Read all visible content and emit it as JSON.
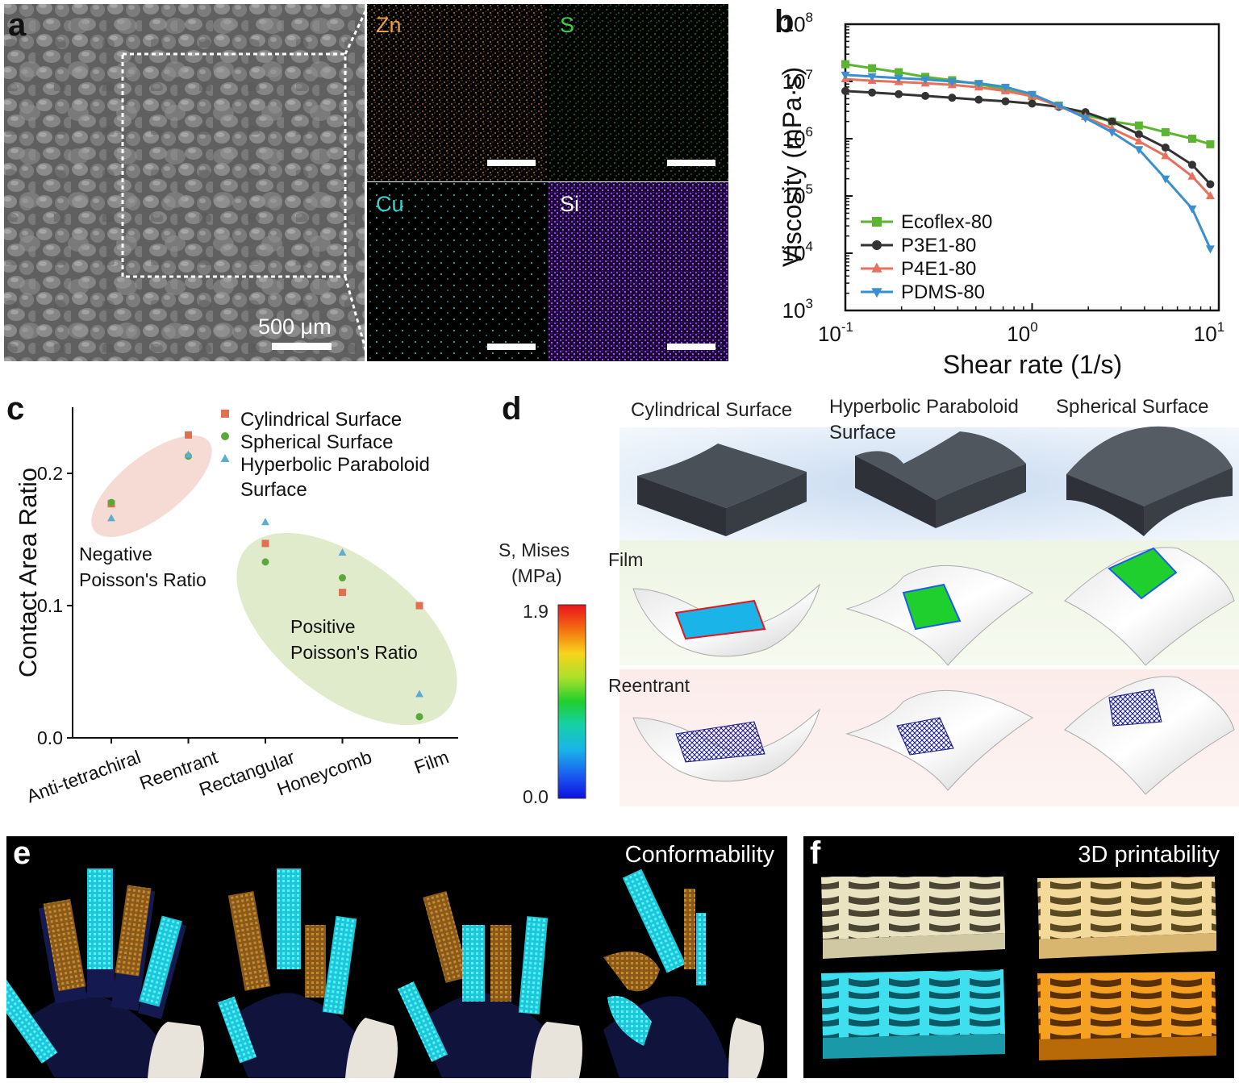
{
  "panel_a": {
    "label": "a",
    "scale_bar_text": "500 μm",
    "maps": [
      {
        "element": "Zn",
        "color": "#e8a040"
      },
      {
        "element": "S",
        "color": "#3fd14a"
      },
      {
        "element": "Cu",
        "color": "#3ad1c8"
      },
      {
        "element": "Si",
        "color": "#a260ff"
      }
    ]
  },
  "panel_b": {
    "label": "b",
    "chart_data": {
      "type": "line",
      "xscale": "log",
      "yscale": "log",
      "xlabel": "Shear rate (1/s)",
      "ylabel": "Viscosity (mPa·s)",
      "xlim": [
        0.1,
        10
      ],
      "ylim": [
        1000,
        100000000
      ],
      "x_tick_labels": [
        {
          "base": "10",
          "exp": "-1"
        },
        {
          "base": "10",
          "exp": "0"
        },
        {
          "base": "10",
          "exp": "1"
        }
      ],
      "y_tick_labels": [
        {
          "base": "10",
          "exp": "3"
        },
        {
          "base": "10",
          "exp": "4"
        },
        {
          "base": "10",
          "exp": "5"
        },
        {
          "base": "10",
          "exp": "6"
        },
        {
          "base": "10",
          "exp": "7"
        },
        {
          "base": "10",
          "exp": "8"
        }
      ],
      "series": [
        {
          "name": "Ecoflex-80",
          "color": "#5cb531",
          "marker": "square",
          "x": [
            0.1,
            0.139,
            0.193,
            0.268,
            0.373,
            0.518,
            0.72,
            1.0,
            1.39,
            1.93,
            2.68,
            3.73,
            5.18,
            7.2,
            9.0
          ],
          "y": [
            20000000,
            17000000,
            14500000,
            12000000,
            10500000,
            9000000,
            7200000,
            5500000,
            3800000,
            2600000,
            2000000,
            1700000,
            1300000,
            1000000,
            800000
          ]
        },
        {
          "name": "P3E1-80",
          "color": "#333333",
          "marker": "circle",
          "x": [
            0.1,
            0.139,
            0.193,
            0.268,
            0.373,
            0.518,
            0.72,
            1.0,
            1.39,
            1.93,
            2.68,
            3.73,
            5.18,
            7.2,
            9.0
          ],
          "y": [
            6800000,
            6400000,
            6000000,
            5600000,
            5200000,
            4800000,
            4500000,
            4100000,
            3600000,
            2900000,
            2000000,
            1200000,
            700000,
            350000,
            160000
          ]
        },
        {
          "name": "P4E1-80",
          "color": "#e8705c",
          "marker": "triangle-up",
          "x": [
            0.1,
            0.139,
            0.193,
            0.268,
            0.373,
            0.518,
            0.72,
            1.0,
            1.39,
            1.93,
            2.68,
            3.73,
            5.18,
            7.2,
            9.0
          ],
          "y": [
            11000000,
            10300000,
            9800000,
            9300000,
            8700000,
            7900000,
            6800000,
            5500000,
            3700000,
            2400000,
            1500000,
            900000,
            500000,
            220000,
            100000
          ]
        },
        {
          "name": "PDMS-80",
          "color": "#3a8fd0",
          "marker": "triangle-down",
          "x": [
            0.1,
            0.139,
            0.193,
            0.268,
            0.373,
            0.518,
            0.72,
            1.0,
            1.39,
            1.93,
            2.68,
            3.73,
            5.18,
            7.2,
            9.0
          ],
          "y": [
            13000000,
            12200000,
            11500000,
            10800000,
            10000000,
            9300000,
            8000000,
            6000000,
            3800000,
            2300000,
            1300000,
            650000,
            200000,
            60000,
            12000
          ]
        }
      ]
    }
  },
  "panel_c": {
    "label": "c",
    "chart_data": {
      "type": "scatter",
      "ylabel": "Contact Area Ratio",
      "ylim": [
        0,
        0.25
      ],
      "y_ticks": [
        0.0,
        0.1,
        0.2
      ],
      "y_tick_labels": [
        "0.0",
        "0.1",
        "0.2"
      ],
      "categories": [
        "Anti-tetrachiral",
        "Reentrant",
        "Rectangular",
        "Honeycomb",
        "Film"
      ],
      "series": [
        {
          "name": "Cylindrical Surface",
          "color": "#e07050",
          "marker": "square",
          "values": [
            0.177,
            0.229,
            0.147,
            0.11,
            0.1
          ]
        },
        {
          "name": "Spherical Surface",
          "color": "#5aa83a",
          "marker": "circle",
          "values": [
            0.178,
            0.213,
            0.133,
            0.121,
            0.016
          ]
        },
        {
          "name": "Hyperbolic Paraboloid Surface",
          "color": "#5aaed0",
          "marker": "triangle-up",
          "values": [
            0.166,
            0.214,
            0.163,
            0.14,
            0.033
          ]
        }
      ],
      "legend": [
        {
          "name": "Cylindrical Surface"
        },
        {
          "name": "Spherical Surface"
        },
        {
          "name_line1": "Hyperbolic Paraboloid",
          "name_line2": "Surface"
        }
      ],
      "annotations": {
        "negative_line1": "Negative",
        "negative_line2": "Poisson's Ratio",
        "positive_line1": "Positive",
        "positive_line2": "Poisson's Ratio"
      }
    }
  },
  "panel_d": {
    "label": "d",
    "col_titles": {
      "cyl": "Cylindrical Surface",
      "hyp1": "Hyperbolic Paraboloid",
      "hyp2": "Surface",
      "sph": "Spherical Surface"
    },
    "row_labels": {
      "film": "Film",
      "reentrant": "Reentrant"
    },
    "colorbar": {
      "title1": "S, Mises",
      "title2": "(MPa)",
      "max": "1.9",
      "min": "0.0"
    }
  },
  "panel_e": {
    "label": "e",
    "title": "Conformability"
  },
  "panel_f": {
    "label": "f",
    "title": "3D printability"
  }
}
